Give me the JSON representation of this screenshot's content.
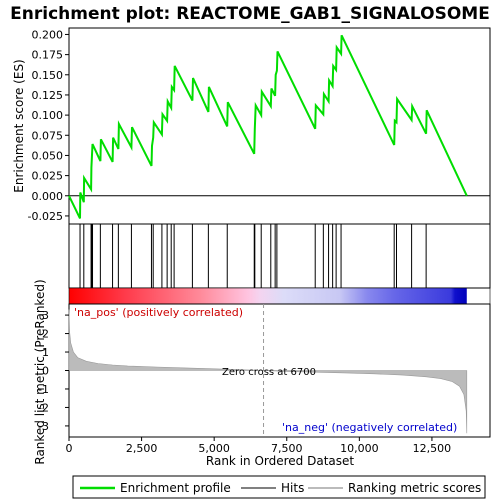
{
  "chart_data": {
    "type": "line",
    "title": "Enrichment plot: REACTOME_GAB1_SIGNALOSOME",
    "es_panel": {
      "ylabel": "Enrichment score (ES)",
      "ylim": [
        -0.035,
        0.208
      ],
      "yticks": [
        "0.200",
        "0.175",
        "0.150",
        "0.125",
        "0.100",
        "0.075",
        "0.050",
        "0.025",
        "0.000",
        "-0.025"
      ],
      "ytick_values": [
        0.2,
        0.175,
        0.15,
        0.125,
        0.1,
        0.075,
        0.05,
        0.025,
        0.0,
        -0.025
      ],
      "line_color": "#00dd00",
      "points": [
        [
          0,
          0.0
        ],
        [
          380,
          -0.028
        ],
        [
          390,
          0.004
        ],
        [
          510,
          -0.008
        ],
        [
          520,
          0.022
        ],
        [
          760,
          0.008
        ],
        [
          770,
          0.035
        ],
        [
          790,
          0.048
        ],
        [
          810,
          0.064
        ],
        [
          1080,
          0.043
        ],
        [
          1100,
          0.07
        ],
        [
          1500,
          0.042
        ],
        [
          1520,
          0.072
        ],
        [
          1700,
          0.058
        ],
        [
          1720,
          0.089
        ],
        [
          2150,
          0.06
        ],
        [
          2170,
          0.085
        ],
        [
          2840,
          0.037
        ],
        [
          2860,
          0.062
        ],
        [
          2900,
          0.072
        ],
        [
          2920,
          0.091
        ],
        [
          3200,
          0.076
        ],
        [
          3220,
          0.101
        ],
        [
          3380,
          0.093
        ],
        [
          3400,
          0.117
        ],
        [
          3520,
          0.109
        ],
        [
          3540,
          0.135
        ],
        [
          3620,
          0.131
        ],
        [
          3640,
          0.161
        ],
        [
          4250,
          0.118
        ],
        [
          4270,
          0.146
        ],
        [
          4800,
          0.104
        ],
        [
          4820,
          0.135
        ],
        [
          5450,
          0.086
        ],
        [
          5470,
          0.116
        ],
        [
          6380,
          0.052
        ],
        [
          6400,
          0.083
        ],
        [
          6430,
          0.112
        ],
        [
          6620,
          0.1
        ],
        [
          6640,
          0.129
        ],
        [
          6950,
          0.111
        ],
        [
          6970,
          0.133
        ],
        [
          7100,
          0.124
        ],
        [
          7120,
          0.15
        ],
        [
          7160,
          0.155
        ],
        [
          7180,
          0.179
        ],
        [
          8480,
          0.083
        ],
        [
          8500,
          0.112
        ],
        [
          8760,
          0.101
        ],
        [
          8780,
          0.126
        ],
        [
          8940,
          0.117
        ],
        [
          8960,
          0.143
        ],
        [
          9080,
          0.136
        ],
        [
          9100,
          0.161
        ],
        [
          9200,
          0.156
        ],
        [
          9220,
          0.184
        ],
        [
          9370,
          0.176
        ],
        [
          9390,
          0.199
        ],
        [
          11200,
          0.063
        ],
        [
          11220,
          0.093
        ],
        [
          11280,
          0.091
        ],
        [
          11300,
          0.12
        ],
        [
          11800,
          0.094
        ],
        [
          11820,
          0.111
        ],
        [
          12300,
          0.077
        ],
        [
          12320,
          0.106
        ],
        [
          13700,
          0.0
        ]
      ]
    },
    "hits": [
      380,
      510,
      760,
      790,
      810,
      1080,
      1500,
      1700,
      2150,
      2840,
      2900,
      3200,
      3380,
      3520,
      3620,
      4250,
      4800,
      5450,
      6380,
      6400,
      6620,
      6950,
      7100,
      7160,
      8480,
      8760,
      8940,
      9080,
      9200,
      9370,
      11200,
      11280,
      11800,
      12300
    ],
    "rank_panel": {
      "ylabel": "Ranked list metric (PreRanked)",
      "ylim": [
        -3.6,
        3.6
      ],
      "yticks": [
        "3",
        "2",
        "1",
        "0",
        "-1",
        "-2",
        "-3"
      ],
      "ytick_values": [
        3,
        2,
        1,
        0,
        -1,
        -2,
        -3
      ],
      "xlabel": "Rank in Ordered Dataset",
      "xlim": [
        0,
        14500
      ],
      "xticks": [
        "0",
        "2,500",
        "5,000",
        "7,500",
        "10,000",
        "12,500"
      ],
      "xtick_values": [
        0,
        2500,
        5000,
        7500,
        10000,
        12500
      ],
      "pos_label": "'na_pos' (positively correlated)",
      "neg_label": "'na_neg' (negatively correlated)",
      "zero_cross_label": "Zero cross at 6700",
      "zero_cross": 6700,
      "n_genes": 13700,
      "metric_points": [
        [
          0,
          3.3
        ],
        [
          20,
          2.1
        ],
        [
          60,
          1.5
        ],
        [
          150,
          1.0
        ],
        [
          300,
          0.7
        ],
        [
          600,
          0.5
        ],
        [
          1000,
          0.38
        ],
        [
          1500,
          0.3
        ],
        [
          2000,
          0.25
        ],
        [
          3000,
          0.19
        ],
        [
          4000,
          0.14
        ],
        [
          5000,
          0.09
        ],
        [
          6000,
          0.04
        ],
        [
          6700,
          0.0
        ],
        [
          7500,
          -0.05
        ],
        [
          8500,
          -0.09
        ],
        [
          9500,
          -0.13
        ],
        [
          10500,
          -0.18
        ],
        [
          11500,
          -0.25
        ],
        [
          12300,
          -0.34
        ],
        [
          12800,
          -0.44
        ],
        [
          13200,
          -0.6
        ],
        [
          13450,
          -0.85
        ],
        [
          13600,
          -1.3
        ],
        [
          13680,
          -2.2
        ],
        [
          13700,
          -3.4
        ]
      ]
    },
    "legend": {
      "placement": "bottom",
      "entries": [
        {
          "label": "Enrichment profile",
          "color": "#00dd00"
        },
        {
          "label": "Hits",
          "color": "#000000"
        },
        {
          "label": "Ranking metric scores",
          "color": "#bbbbbb"
        }
      ]
    },
    "grid": false
  }
}
